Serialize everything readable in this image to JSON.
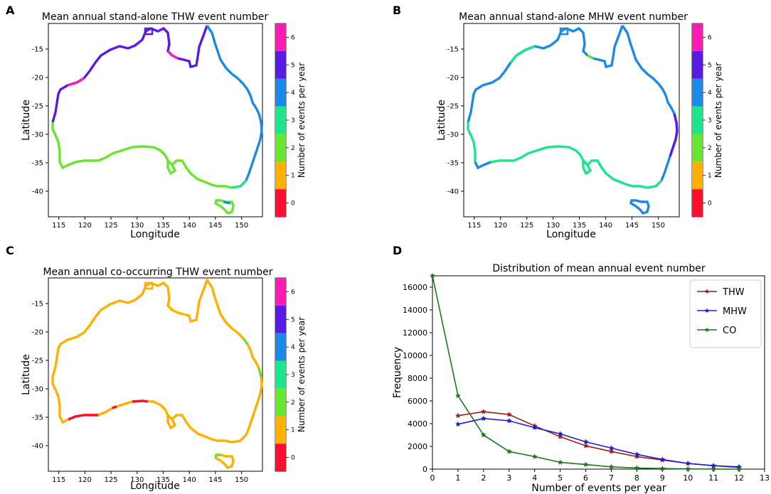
{
  "panels": {
    "A": {
      "letter": "A",
      "title": "Mean annual stand-alone THW event number",
      "xlabel": "Longitude",
      "ylabel": "Latitude",
      "colorbar_label": "Number of events per year"
    },
    "B": {
      "letter": "B",
      "title": "Mean annual stand-alone MHW event number",
      "xlabel": "Longitude",
      "ylabel": "Latitude",
      "colorbar_label": "Number of events per year"
    },
    "C": {
      "letter": "C",
      "title": "Mean annual co-occurring THW event number",
      "xlabel": "Longitude",
      "ylabel": "Latitude",
      "colorbar_label": "Number of events per year"
    },
    "D": {
      "letter": "D"
    }
  },
  "map_axes": {
    "lon_ticks": [
      115,
      120,
      125,
      130,
      135,
      140,
      145,
      150
    ],
    "lat_ticks": [
      -15,
      -20,
      -25,
      -30,
      -35,
      -40
    ],
    "xlim": [
      113,
      154
    ],
    "ylim": [
      -44.5,
      -10.5
    ]
  },
  "colorbar": {
    "ticks": [
      "0",
      "1",
      "2",
      "3",
      "4",
      "5",
      "6"
    ],
    "colors": [
      "#ff0d2e",
      "#ffb000",
      "#66e62e",
      "#1ae68a",
      "#1a8ae6",
      "#5a1ae6",
      "#ff1ab4"
    ]
  },
  "chart_data": {
    "type": "line",
    "title": "Distribution of mean annual event number",
    "xlabel": "Number of events per year",
    "ylabel": "Frequency",
    "xlim": [
      0,
      13
    ],
    "ylim": [
      0,
      17000
    ],
    "xticks": [
      0,
      1,
      2,
      3,
      4,
      5,
      6,
      7,
      8,
      9,
      10,
      11,
      12,
      13
    ],
    "yticks": [
      0,
      2000,
      4000,
      6000,
      8000,
      10000,
      12000,
      14000,
      16000
    ],
    "legend_position": "top-right",
    "series": [
      {
        "name": "THW",
        "color": "#a01c1c",
        "x": [
          1,
          2,
          3,
          4,
          5,
          6,
          7,
          8,
          9,
          10,
          11,
          12
        ],
        "values": [
          4700,
          5050,
          4800,
          3800,
          2850,
          2050,
          1550,
          1100,
          800,
          500,
          300,
          150
        ]
      },
      {
        "name": "MHW",
        "color": "#1c1cd8",
        "x": [
          1,
          2,
          3,
          4,
          5,
          6,
          7,
          8,
          9,
          10,
          11,
          12
        ],
        "values": [
          3950,
          4450,
          4250,
          3650,
          3100,
          2400,
          1850,
          1300,
          850,
          500,
          300,
          200
        ]
      },
      {
        "name": "CO",
        "color": "#1a7a1a",
        "x": [
          0,
          1,
          2,
          3,
          4,
          5,
          6,
          7,
          8,
          9,
          10,
          11,
          12
        ],
        "values": [
          17000,
          6450,
          3000,
          1550,
          1100,
          600,
          400,
          200,
          100,
          50,
          20,
          10,
          0
        ]
      }
    ]
  }
}
